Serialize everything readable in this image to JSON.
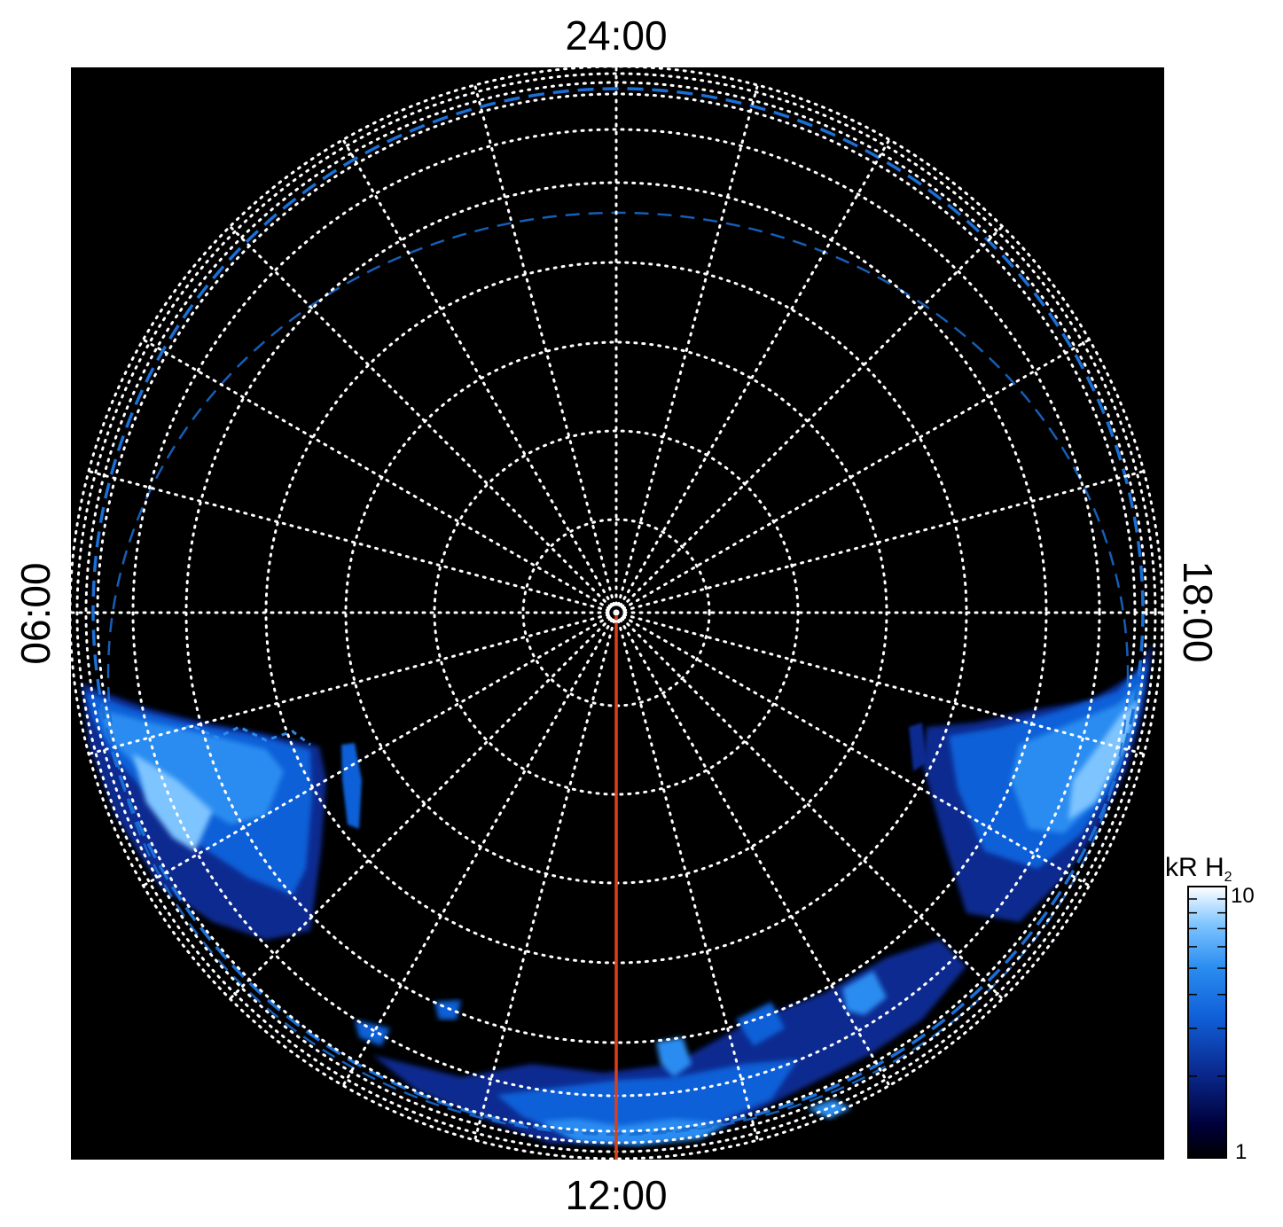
{
  "labels": {
    "top": "24:00",
    "bottom": "12:00",
    "left": "06:00",
    "right": "18:00"
  },
  "colorbar": {
    "unit": "kR H",
    "unit_subscript": "2",
    "max_label": "10",
    "min_label": "1",
    "scale": "log",
    "colors": [
      "#000000",
      "#00003a",
      "#0a2a90",
      "#1060d8",
      "#2a8cf0",
      "#7ec4ff",
      "#ffffff"
    ]
  },
  "colors": {
    "background": "#000000",
    "grid": "#ffffff",
    "reference_oval": "#1a6fd6",
    "noon_line": "#d8401c"
  }
}
